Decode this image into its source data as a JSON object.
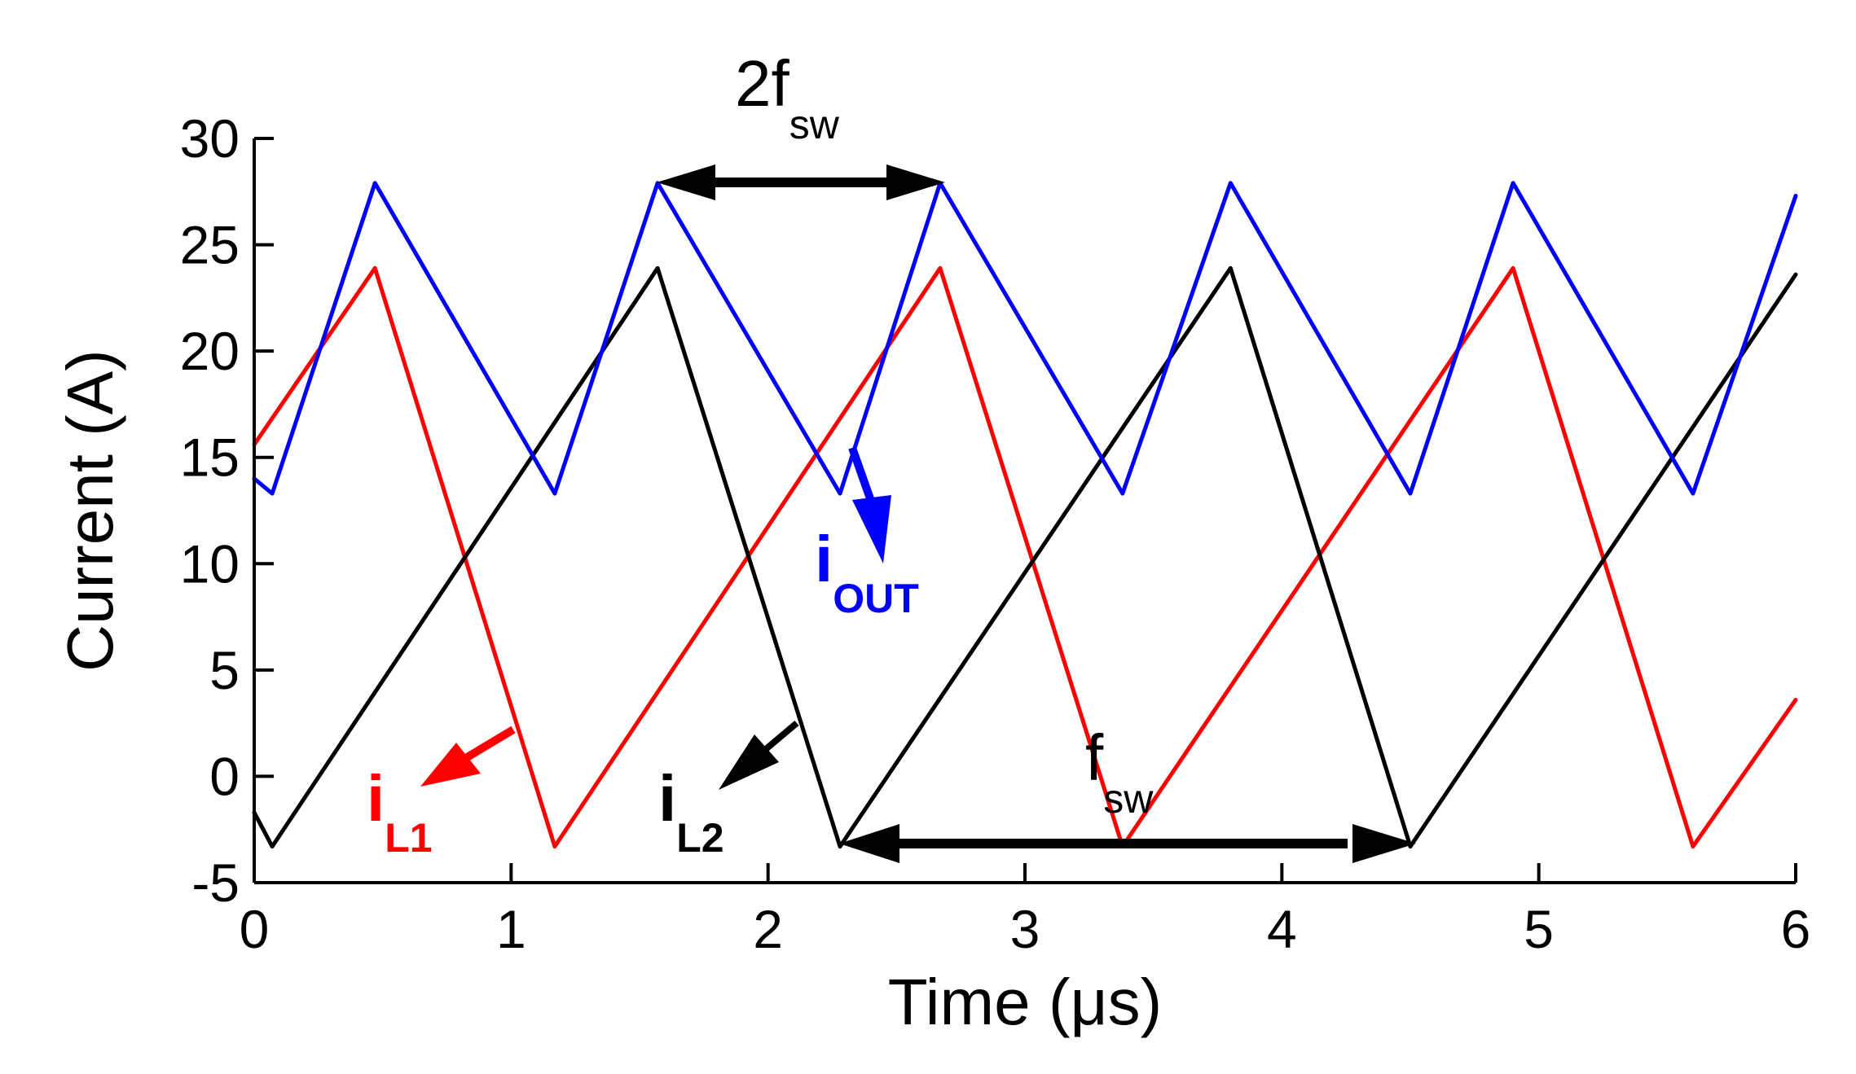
{
  "chart_data": {
    "type": "line",
    "xlabel": "Time (μs)",
    "ylabel": "Current (A)",
    "xlim": [
      0,
      6
    ],
    "ylim": [
      -5,
      30
    ],
    "xticks": [
      0,
      1,
      2,
      3,
      4,
      5,
      6
    ],
    "yticks": [
      -5,
      0,
      5,
      10,
      15,
      20,
      25,
      30
    ],
    "grid": false,
    "series": [
      {
        "name": "iL1",
        "color": "#ff0000",
        "x": [
          0,
          0.47,
          1.17,
          2.67,
          3.38,
          4.9,
          5.6,
          6.0
        ],
        "y": [
          15.6,
          23.9,
          -3.3,
          23.9,
          -3.3,
          23.9,
          -3.3,
          3.6
        ]
      },
      {
        "name": "iL2",
        "color": "#000000",
        "x": [
          0,
          0.07,
          1.57,
          2.28,
          3.8,
          4.5,
          6.0
        ],
        "y": [
          -1.7,
          -3.3,
          23.9,
          -3.3,
          23.9,
          -3.3,
          23.6
        ]
      },
      {
        "name": "iOUT",
        "color": "#0000ff",
        "x": [
          0,
          0.07,
          0.47,
          1.17,
          1.57,
          2.28,
          2.67,
          3.38,
          3.8,
          4.5,
          4.9,
          5.6,
          6.0
        ],
        "y": [
          14.0,
          13.3,
          27.9,
          13.3,
          27.9,
          13.3,
          27.9,
          13.3,
          27.9,
          13.3,
          27.9,
          13.3,
          27.3
        ]
      }
    ],
    "annotations": {
      "two_fsw": {
        "main": "2f",
        "sub": "sw"
      },
      "fsw": {
        "main": "f",
        "sub": "sw"
      },
      "il1": {
        "main": "i",
        "sub": "L1"
      },
      "il2": {
        "main": "i",
        "sub": "L2"
      },
      "iout": {
        "main": "i",
        "sub": "OUT"
      }
    }
  },
  "colors": {
    "il1": "#ff0000",
    "il2": "#000000",
    "iout": "#0000ff"
  }
}
